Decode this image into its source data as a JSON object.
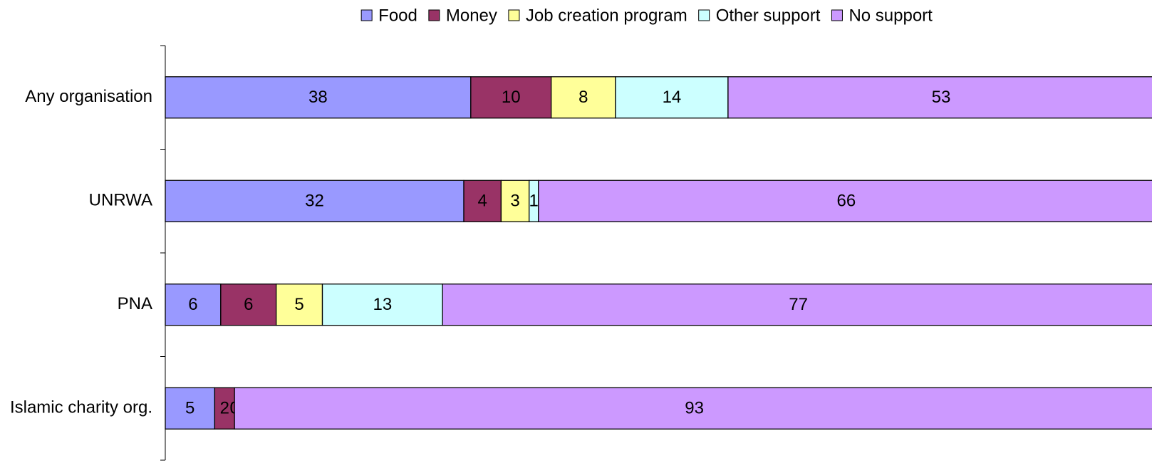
{
  "chart_data": {
    "type": "bar",
    "orientation": "horizontal",
    "stacked": "percent",
    "categories": [
      "Any organisation",
      "UNRWA",
      "PNA",
      "Islamic charity org."
    ],
    "series": [
      {
        "name": "Food",
        "color": "#9999ff",
        "values": [
          38,
          32,
          6,
          5
        ]
      },
      {
        "name": "Money",
        "color": "#993366",
        "values": [
          10,
          4,
          6,
          2
        ]
      },
      {
        "name": "Job creation program",
        "color": "#ffff99",
        "values": [
          8,
          3,
          5,
          0
        ]
      },
      {
        "name": "Other support",
        "color": "#ccffff",
        "values": [
          14,
          1,
          13,
          0
        ]
      },
      {
        "name": "No support",
        "color": "#cc99ff",
        "values": [
          53,
          66,
          77,
          93
        ]
      }
    ],
    "legend": "top",
    "data_labels": true
  }
}
